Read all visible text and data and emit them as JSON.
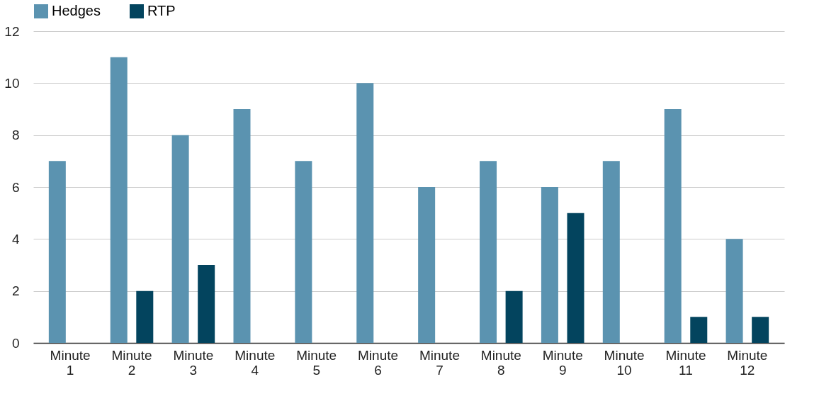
{
  "chart_data": {
    "type": "bar",
    "categories": [
      "Minute 1",
      "Minute 2",
      "Minute 3",
      "Minute 4",
      "Minute 5",
      "Minute 6",
      "Minute 7",
      "Minute 8",
      "Minute 9",
      "Minute 10",
      "Minute 11",
      "Minute 12"
    ],
    "series": [
      {
        "name": "Hedges",
        "color": "#5b93b0",
        "values": [
          7,
          11,
          8,
          9,
          7,
          10,
          6,
          7,
          6,
          7,
          9,
          4
        ]
      },
      {
        "name": "RTP",
        "color": "#03445e",
        "values": [
          0,
          2,
          3,
          0,
          0,
          0,
          0,
          2,
          5,
          0,
          1,
          1
        ]
      }
    ],
    "ylim": [
      0,
      12
    ],
    "yticks": [
      0,
      2,
      4,
      6,
      8,
      10,
      12
    ],
    "grid": "y",
    "legend": "top"
  }
}
